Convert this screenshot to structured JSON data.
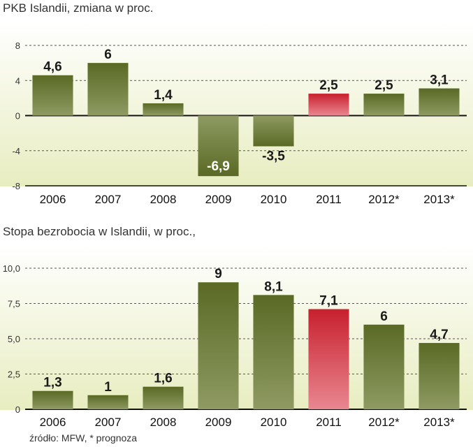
{
  "chart_data": [
    {
      "type": "bar",
      "title": "PKB Islandii, zmiana w proc.",
      "categories": [
        "2006",
        "2007",
        "2008",
        "2009",
        "2010",
        "2011",
        "2012*",
        "2013*"
      ],
      "values": [
        4.6,
        6,
        1.4,
        -6.9,
        -3.5,
        2.5,
        2.5,
        3.1
      ],
      "value_labels": [
        "4,6",
        "6",
        "1,4",
        "-6,9",
        "-3,5",
        "2,5",
        "2,5",
        "3,1"
      ],
      "highlight_index": 5,
      "yticks": [
        8,
        4,
        0,
        -4,
        -8
      ],
      "ytick_labels": [
        "8",
        "4",
        "0",
        "-4",
        "-8"
      ],
      "ylim": [
        -8,
        8
      ],
      "grid": true,
      "colors": {
        "bar": "#6b7a35",
        "highlight": "#d93a4a",
        "background": "#e8edc0"
      }
    },
    {
      "type": "bar",
      "title": "Stopa bezrobocia w Islandii, w proc.,",
      "categories": [
        "2006",
        "2007",
        "2008",
        "2009",
        "2010",
        "2011",
        "2012*",
        "2013*"
      ],
      "values": [
        1.3,
        1,
        1.6,
        9,
        8.1,
        7.1,
        6,
        4.7
      ],
      "value_labels": [
        "1,3",
        "1",
        "1,6",
        "9",
        "8,1",
        "7,1",
        "6",
        "4,7"
      ],
      "highlight_index": 5,
      "yticks": [
        10,
        7.5,
        5,
        2.5,
        0
      ],
      "ytick_labels": [
        "10,0",
        "7,5",
        "5,0",
        "2,5",
        "0"
      ],
      "ylim": [
        0,
        10
      ],
      "grid": true,
      "colors": {
        "bar": "#6b7a35",
        "highlight": "#d93a4a",
        "background": "#e8edc0"
      }
    }
  ],
  "source": "źródło: MFW, * prognoza"
}
